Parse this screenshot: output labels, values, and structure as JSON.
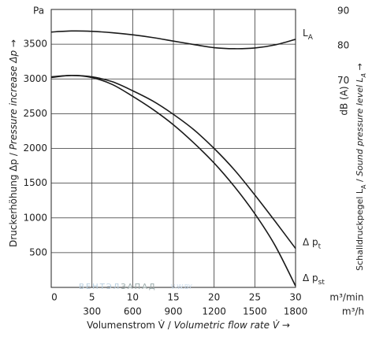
{
  "chart_data": {
    "type": "line",
    "x_unit": "m³/min",
    "x2_unit": "m³/h",
    "y_unit": "Pa",
    "y2_unit": "dB (A)",
    "xlabel": [
      "Volumenstrom V̇ / ",
      "Volumetric flow rate V̇ →"
    ],
    "ylabel": [
      "Druckerhöhung Δp / ",
      "Pressure increase Δp →"
    ],
    "y2label": [
      "Schalldruckpegel L",
      "A",
      " / ",
      "Sound pressure level L",
      "A",
      " →"
    ],
    "watermark": [
      "ВЕНТЭЛ",
      "ЗАПАД",
      "V-W.BY"
    ],
    "xlim": [
      0,
      30
    ],
    "xticks": [
      0,
      5,
      10,
      15,
      20,
      25,
      30
    ],
    "x2lim": [
      0,
      1800
    ],
    "x2ticks": [
      300,
      600,
      900,
      1200,
      1500,
      1800
    ],
    "ylim": [
      0,
      4000
    ],
    "yticks": [
      500,
      1000,
      1500,
      2000,
      2500,
      3000,
      3500
    ],
    "y2lim": [
      10,
      90
    ],
    "y2ticks": [
      70,
      80,
      90
    ],
    "grid": true,
    "x": [
      0,
      2.5,
      5,
      7.5,
      10,
      12.5,
      15,
      17.5,
      20,
      22.5,
      25,
      27.5,
      30
    ],
    "series": [
      {
        "name": "L",
        "name_sub": "A",
        "color": "#1a1a1a",
        "axis": "y2",
        "values": [
          83.5,
          83.8,
          83.7,
          83.3,
          82.7,
          81.9,
          80.9,
          79.9,
          79.0,
          78.7,
          78.9,
          79.8,
          81.4
        ]
      },
      {
        "name": "Δ p",
        "name_sub": "t",
        "color": "#1a1a1a",
        "values": [
          3030,
          3050,
          3030,
          2960,
          2830,
          2680,
          2490,
          2270,
          2000,
          1690,
          1330,
          950,
          560
        ]
      },
      {
        "name": "Δ p",
        "name_sub": "st",
        "color": "#1a1a1a",
        "values": [
          3020,
          3050,
          3020,
          2920,
          2750,
          2560,
          2340,
          2080,
          1790,
          1450,
          1060,
          600,
          20
        ]
      }
    ]
  }
}
